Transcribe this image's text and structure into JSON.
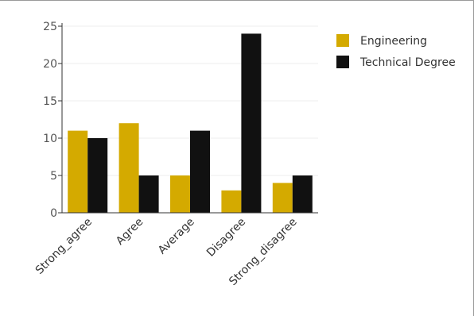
{
  "chart_data": {
    "type": "bar",
    "title": "",
    "xlabel": "",
    "ylabel": "",
    "categories": [
      "Strong_agree",
      "Agree",
      "Average",
      "Disagree",
      "Strong_disagree"
    ],
    "series": [
      {
        "name": "Engineering",
        "color": "#d4aa00",
        "values": [
          11,
          12,
          5,
          3,
          4
        ]
      },
      {
        "name": "Technical Degree",
        "color": "#111111",
        "values": [
          10,
          5,
          11,
          24,
          5
        ]
      }
    ],
    "ylim": [
      0,
      25
    ],
    "yticks": [
      0,
      5,
      10,
      15,
      20,
      25
    ],
    "grid": true,
    "legend_position": "top-right"
  }
}
